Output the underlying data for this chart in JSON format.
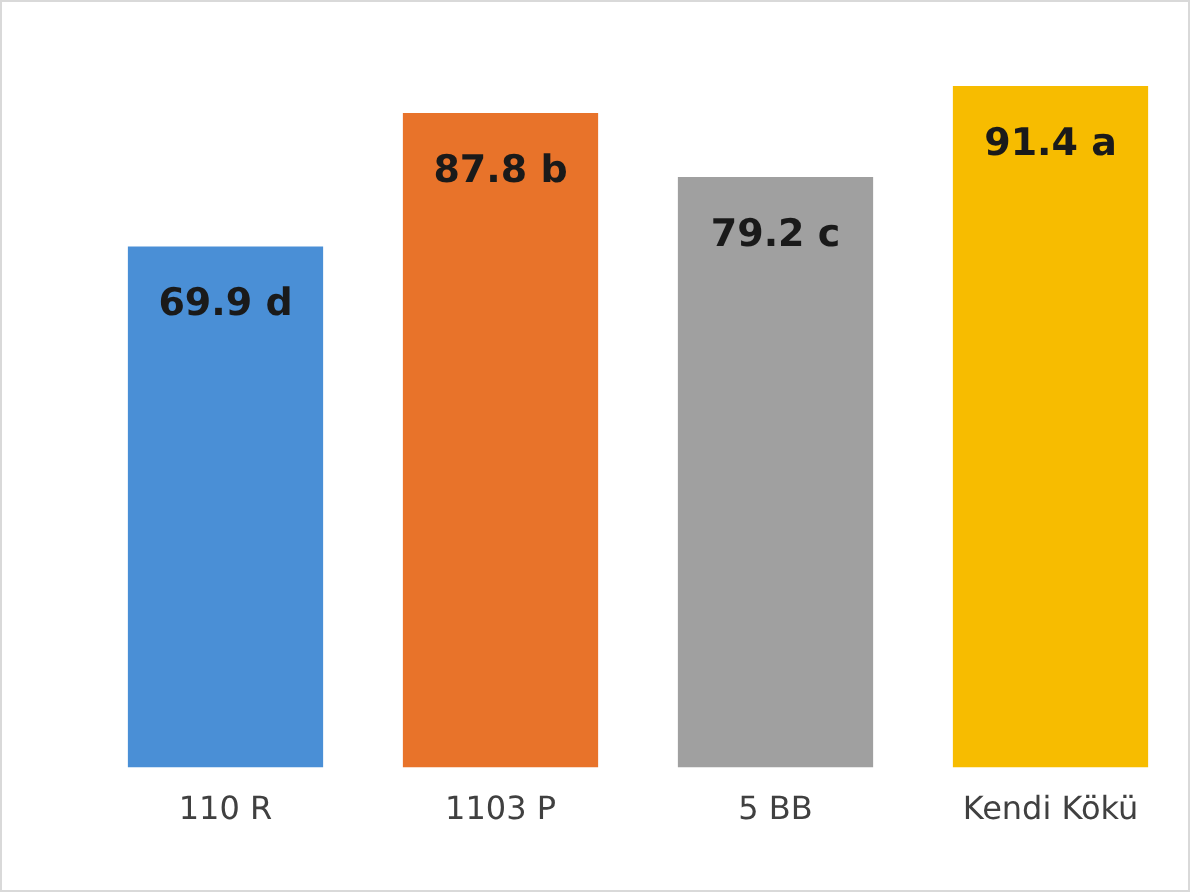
{
  "chart_data": {
    "type": "bar",
    "categories": [
      "110 R",
      "1103 P",
      "5 BB",
      "Kendi Kökü"
    ],
    "values": [
      69.9,
      87.8,
      79.2,
      91.4
    ],
    "colors": [
      "#4a8fd6",
      "#e8732a",
      "#a0a0a0",
      "#f7bc00"
    ],
    "value_labels": [
      "69.9 d",
      "87.8 b",
      "79.2 c",
      "91.4 a"
    ],
    "tick_labels": "x",
    "grid": false,
    "legend": false
  }
}
